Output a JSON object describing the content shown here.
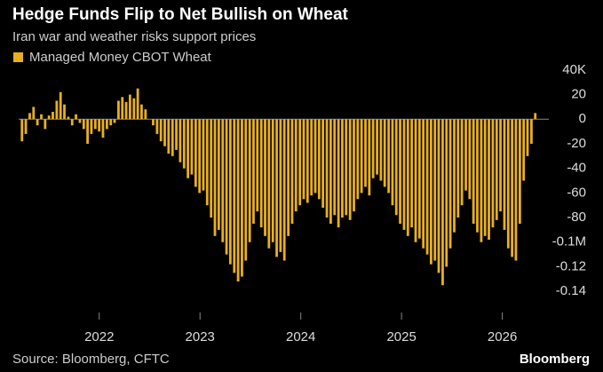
{
  "chart_data": {
    "type": "bar",
    "title": "Hedge Funds Flip to Net Bullish on Wheat",
    "subtitle": "Iran war and weather risks support prices",
    "source": "Source: Bloomberg, CFTC",
    "brand": "Bloomberg",
    "series": [
      {
        "name": "Managed Money CBOT Wheat",
        "color": "#e8b020",
        "values": [
          -18000,
          -12000,
          5000,
          10000,
          -5000,
          4000,
          -8000,
          3000,
          6000,
          15000,
          22000,
          12000,
          2000,
          -5000,
          4000,
          -3000,
          -8000,
          -20000,
          -12000,
          -8000,
          -10000,
          -15000,
          -8000,
          -5000,
          -3000,
          15000,
          18000,
          14000,
          20000,
          17000,
          25000,
          12000,
          8000,
          0,
          -5000,
          -12000,
          -18000,
          -22000,
          -28000,
          -30000,
          -25000,
          -35000,
          -40000,
          -48000,
          -45000,
          -55000,
          -60000,
          -58000,
          -70000,
          -80000,
          -95000,
          -90000,
          -100000,
          -110000,
          -118000,
          -125000,
          -132000,
          -128000,
          -115000,
          -100000,
          -85000,
          -75000,
          -88000,
          -95000,
          -105000,
          -100000,
          -112000,
          -108000,
          -115000,
          -95000,
          -85000,
          -75000,
          -70000,
          -65000,
          -68000,
          -62000,
          -60000,
          -65000,
          -72000,
          -80000,
          -85000,
          -78000,
          -88000,
          -80000,
          -78000,
          -82000,
          -75000,
          -65000,
          -60000,
          -55000,
          -62000,
          -48000,
          -45000,
          -50000,
          -55000,
          -60000,
          -70000,
          -78000,
          -85000,
          -90000,
          -95000,
          -88000,
          -100000,
          -97000,
          -105000,
          -110000,
          -118000,
          -115000,
          -125000,
          -135000,
          -120000,
          -105000,
          -92000,
          -80000,
          -70000,
          -58000,
          -65000,
          -85000,
          -92000,
          -100000,
          -95000,
          -98000,
          -88000,
          -82000,
          -75000,
          -90000,
          -105000,
          -112000,
          -115000,
          -85000,
          -50000,
          -30000,
          -20000,
          5000
        ]
      }
    ],
    "x": [
      2021.233,
      2021.271,
      2021.31,
      2021.348,
      2021.386,
      2021.425,
      2021.463,
      2021.501,
      2021.539,
      2021.578,
      2021.616,
      2021.654,
      2021.693,
      2021.731,
      2021.769,
      2021.808,
      2021.846,
      2021.884,
      2021.922,
      2021.961,
      2021.999,
      2022.037,
      2022.076,
      2022.114,
      2022.152,
      2022.191,
      2022.229,
      2022.267,
      2022.305,
      2022.344,
      2022.382,
      2022.42,
      2022.459,
      2022.497,
      2022.535,
      2022.574,
      2022.612,
      2022.65,
      2022.688,
      2022.727,
      2022.765,
      2022.803,
      2022.842,
      2022.88,
      2022.918,
      2022.957,
      2022.995,
      2023.033,
      2023.071,
      2023.11,
      2023.148,
      2023.186,
      2023.225,
      2023.263,
      2023.301,
      2023.34,
      2023.378,
      2023.416,
      2023.454,
      2023.493,
      2023.531,
      2023.569,
      2023.608,
      2023.646,
      2023.684,
      2023.723,
      2023.761,
      2023.799,
      2023.837,
      2023.876,
      2023.914,
      2023.952,
      2023.991,
      2024.029,
      2024.067,
      2024.106,
      2024.144,
      2024.182,
      2024.22,
      2024.259,
      2024.297,
      2024.335,
      2024.374,
      2024.412,
      2024.45,
      2024.489,
      2024.527,
      2024.565,
      2024.603,
      2024.642,
      2024.68,
      2024.718,
      2024.757,
      2024.795,
      2024.833,
      2024.872,
      2024.91,
      2024.948,
      2024.986,
      2025.025,
      2025.063,
      2025.101,
      2025.14,
      2025.178,
      2025.216,
      2025.255,
      2025.293,
      2025.331,
      2025.369,
      2025.408,
      2025.446,
      2025.484,
      2025.523,
      2025.561,
      2025.599,
      2025.638,
      2025.676,
      2025.714,
      2025.752,
      2025.791,
      2025.829,
      2025.867,
      2025.906,
      2025.944,
      2025.982,
      2026.021,
      2026.059,
      2026.097,
      2026.135,
      2026.174,
      2026.212,
      2026.25,
      2026.289,
      2026.327
    ],
    "xlim": [
      2021.2,
      2026.4
    ],
    "xticks": [
      2022,
      2023,
      2024,
      2025,
      2026
    ],
    "ylim": [
      -150000,
      50000
    ],
    "yticks": [
      {
        "value": 40000,
        "label": "40K"
      },
      {
        "value": 20000,
        "label": "20"
      },
      0,
      {
        "value": -20000,
        "label": "-20"
      },
      {
        "value": -40000,
        "label": "-40"
      },
      {
        "value": -60000,
        "label": "-60"
      },
      {
        "value": -80000,
        "label": "-80"
      },
      {
        "value": -100000,
        "label": "-0.1M"
      },
      {
        "value": -120000,
        "label": "-0.12"
      },
      {
        "value": -140000,
        "label": "-0.14"
      }
    ]
  }
}
